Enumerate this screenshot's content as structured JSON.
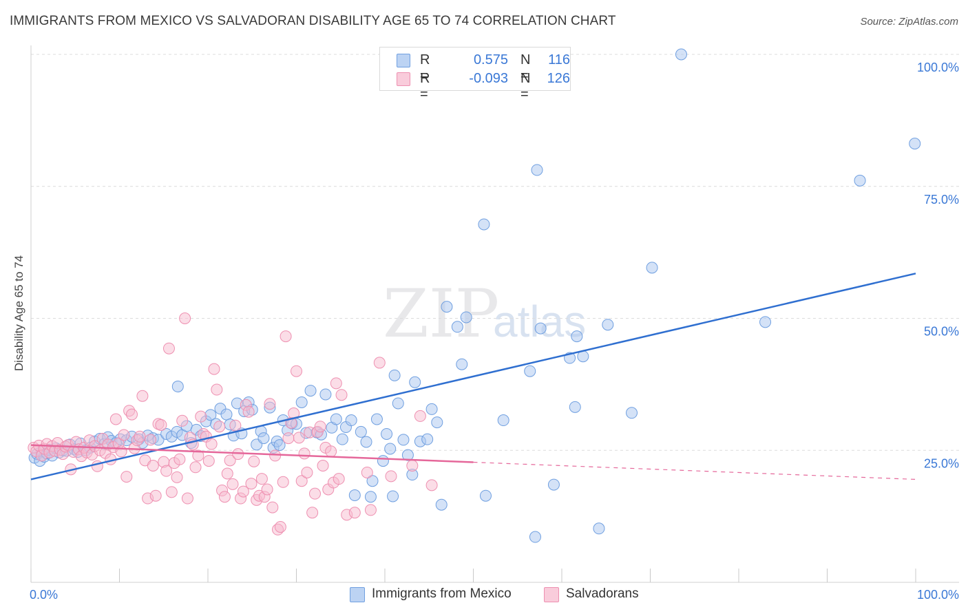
{
  "title": "IMMIGRANTS FROM MEXICO VS SALVADORAN DISABILITY AGE 65 TO 74 CORRELATION CHART",
  "source": "Source: ZipAtlas.com",
  "watermark": {
    "zip": "ZIP",
    "atlas": "atlas"
  },
  "legend": {
    "r_label": "R =",
    "n_label": "N =",
    "rows": [
      {
        "r": "0.575",
        "n": "116",
        "color": "#a9c6ef",
        "stroke": "#6f9fe0"
      },
      {
        "r": "-0.093",
        "n": "126",
        "color": "#f7bcd0",
        "stroke": "#ee8fb0"
      }
    ]
  },
  "chart_data": {
    "type": "scatter",
    "xlabel": "",
    "ylabel": "Disability Age 65 to 74",
    "xlim": [
      0,
      100
    ],
    "ylim": [
      0,
      100
    ],
    "x_tick_labels": [
      {
        "value": 0,
        "label": "0.0%"
      },
      {
        "value": 100,
        "label": "100.0%"
      }
    ],
    "y_tick_labels": [
      {
        "value": 25,
        "label": "25.0%"
      },
      {
        "value": 50,
        "label": "50.0%"
      },
      {
        "value": 75,
        "label": "75.0%"
      },
      {
        "value": 100,
        "label": "100.0%"
      }
    ],
    "grid": true,
    "legend_position": "bottom",
    "series": [
      {
        "name": "Immigrants from Mexico",
        "color": "#6f9fe0",
        "fill": "#a9c6ef",
        "trend": {
          "x": [
            0,
            100
          ],
          "y": [
            19.5,
            58.5
          ],
          "dashed_from": null
        },
        "points": [
          [
            0.4,
            23.6
          ],
          [
            0.7,
            24.3
          ],
          [
            1.0,
            23.0
          ],
          [
            1.2,
            24.8
          ],
          [
            1.5,
            23.8
          ],
          [
            1.8,
            24.4
          ],
          [
            2.0,
            25.1
          ],
          [
            2.4,
            24.0
          ],
          [
            2.8,
            25.4
          ],
          [
            3.2,
            24.6
          ],
          [
            3.6,
            25.0
          ],
          [
            4.0,
            24.9
          ],
          [
            4.4,
            26.1
          ],
          [
            4.9,
            25.2
          ],
          [
            5.3,
            24.7
          ],
          [
            5.6,
            26.3
          ],
          [
            6.2,
            25.0
          ],
          [
            6.7,
            25.5
          ],
          [
            7.2,
            26.7
          ],
          [
            7.8,
            27.2
          ],
          [
            8.3,
            26.2
          ],
          [
            8.7,
            27.5
          ],
          [
            9.1,
            26.8
          ],
          [
            9.6,
            26.4
          ],
          [
            10.1,
            27.1
          ],
          [
            10.8,
            26.9
          ],
          [
            11.4,
            27.6
          ],
          [
            12.2,
            27.1
          ],
          [
            12.6,
            26.4
          ],
          [
            13.2,
            27.8
          ],
          [
            13.8,
            27.3
          ],
          [
            14.4,
            27.0
          ],
          [
            15.3,
            28.1
          ],
          [
            15.9,
            27.6
          ],
          [
            16.5,
            28.5
          ],
          [
            17.1,
            27.9
          ],
          [
            17.6,
            29.6
          ],
          [
            18.1,
            26.4
          ],
          [
            18.7,
            28.9
          ],
          [
            19.2,
            27.7
          ],
          [
            19.8,
            30.5
          ],
          [
            20.3,
            31.7
          ],
          [
            20.9,
            30.0
          ],
          [
            21.4,
            32.9
          ],
          [
            22.1,
            31.8
          ],
          [
            22.5,
            29.9
          ],
          [
            22.9,
            27.8
          ],
          [
            23.3,
            33.9
          ],
          [
            23.8,
            28.2
          ],
          [
            24.1,
            32.4
          ],
          [
            24.6,
            34.1
          ],
          [
            25.0,
            32.7
          ],
          [
            25.5,
            26.1
          ],
          [
            26.0,
            28.6
          ],
          [
            26.3,
            27.3
          ],
          [
            27.0,
            33.1
          ],
          [
            27.4,
            25.5
          ],
          [
            27.8,
            26.7
          ],
          [
            28.1,
            26.0
          ],
          [
            28.5,
            30.7
          ],
          [
            29.0,
            28.8
          ],
          [
            29.5,
            30.1
          ],
          [
            30.0,
            30.0
          ],
          [
            30.6,
            34.1
          ],
          [
            31.1,
            28.3
          ],
          [
            31.6,
            36.3
          ],
          [
            32.3,
            28.4
          ],
          [
            32.8,
            28.0
          ],
          [
            33.3,
            35.6
          ],
          [
            34.0,
            29.3
          ],
          [
            34.5,
            30.9
          ],
          [
            35.2,
            27.1
          ],
          [
            35.6,
            29.4
          ],
          [
            36.2,
            30.7
          ],
          [
            36.6,
            16.5
          ],
          [
            37.3,
            28.5
          ],
          [
            37.9,
            26.6
          ],
          [
            38.4,
            16.2
          ],
          [
            38.6,
            19.2
          ],
          [
            39.1,
            30.9
          ],
          [
            39.8,
            23.0
          ],
          [
            40.2,
            28.1
          ],
          [
            40.6,
            25.3
          ],
          [
            41.1,
            39.2
          ],
          [
            41.5,
            33.9
          ],
          [
            42.1,
            27.0
          ],
          [
            42.6,
            24.1
          ],
          [
            43.1,
            20.4
          ],
          [
            43.4,
            37.9
          ],
          [
            44.0,
            26.7
          ],
          [
            44.8,
            27.1
          ],
          [
            45.3,
            32.8
          ],
          [
            45.9,
            30.3
          ],
          [
            46.4,
            14.7
          ],
          [
            47.0,
            52.2
          ],
          [
            48.2,
            48.4
          ],
          [
            48.7,
            41.3
          ],
          [
            49.2,
            50.2
          ],
          [
            51.2,
            67.8
          ],
          [
            51.4,
            16.4
          ],
          [
            53.4,
            30.7
          ],
          [
            56.4,
            40.0
          ],
          [
            57.0,
            8.6
          ],
          [
            57.2,
            78.1
          ],
          [
            57.6,
            48.1
          ],
          [
            59.1,
            18.5
          ],
          [
            60.9,
            42.5
          ],
          [
            61.5,
            33.2
          ],
          [
            61.7,
            46.6
          ],
          [
            62.4,
            42.8
          ],
          [
            64.2,
            10.2
          ],
          [
            65.2,
            48.8
          ],
          [
            67.9,
            32.1
          ],
          [
            70.2,
            59.6
          ],
          [
            73.5,
            100.0
          ],
          [
            83.0,
            49.3
          ],
          [
            93.7,
            76.1
          ],
          [
            99.9,
            83.1
          ],
          [
            16.6,
            37.1
          ],
          [
            40.9,
            16.3
          ]
        ]
      },
      {
        "name": "Salvadorans",
        "color": "#ee8fb0",
        "fill": "#f7bcd0",
        "trend": {
          "x": [
            0,
            100
          ],
          "y": [
            26.0,
            19.5
          ],
          "dashed_from": 50
        },
        "points": [
          [
            0.3,
            25.5
          ],
          [
            0.6,
            24.8
          ],
          [
            0.9,
            25.9
          ],
          [
            1.2,
            24.0
          ],
          [
            1.5,
            25.3
          ],
          [
            1.8,
            26.2
          ],
          [
            2.1,
            24.6
          ],
          [
            2.4,
            25.8
          ],
          [
            2.7,
            24.9
          ],
          [
            3.0,
            26.4
          ],
          [
            3.3,
            25.1
          ],
          [
            3.6,
            24.3
          ],
          [
            3.9,
            25.7
          ],
          [
            4.2,
            26.0
          ],
          [
            4.5,
            21.4
          ],
          [
            4.8,
            24.7
          ],
          [
            5.1,
            26.6
          ],
          [
            5.4,
            25.2
          ],
          [
            5.7,
            23.9
          ],
          [
            6.0,
            25.5
          ],
          [
            6.3,
            24.6
          ],
          [
            6.6,
            26.9
          ],
          [
            6.9,
            24.2
          ],
          [
            7.2,
            25.8
          ],
          [
            7.5,
            22.0
          ],
          [
            7.8,
            25.0
          ],
          [
            8.1,
            27.2
          ],
          [
            8.4,
            24.5
          ],
          [
            8.7,
            26.1
          ],
          [
            9.0,
            23.3
          ],
          [
            9.3,
            25.6
          ],
          [
            9.6,
            30.9
          ],
          [
            9.9,
            26.3
          ],
          [
            10.2,
            24.8
          ],
          [
            10.5,
            27.9
          ],
          [
            10.8,
            20.0
          ],
          [
            11.1,
            32.5
          ],
          [
            11.4,
            31.8
          ],
          [
            11.7,
            25.4
          ],
          [
            12.0,
            26.9
          ],
          [
            12.3,
            27.6
          ],
          [
            12.6,
            35.3
          ],
          [
            12.9,
            23.1
          ],
          [
            13.2,
            15.9
          ],
          [
            13.5,
            27.0
          ],
          [
            13.8,
            22.1
          ],
          [
            14.1,
            16.4
          ],
          [
            14.4,
            30.0
          ],
          [
            14.7,
            29.8
          ],
          [
            15.0,
            22.8
          ],
          [
            15.3,
            21.1
          ],
          [
            15.6,
            44.3
          ],
          [
            15.9,
            17.1
          ],
          [
            16.2,
            22.6
          ],
          [
            16.5,
            19.9
          ],
          [
            16.8,
            23.3
          ],
          [
            17.1,
            30.6
          ],
          [
            17.4,
            50.0
          ],
          [
            17.7,
            15.9
          ],
          [
            18.0,
            27.4
          ],
          [
            18.3,
            26.1
          ],
          [
            18.6,
            21.8
          ],
          [
            18.9,
            24.0
          ],
          [
            19.2,
            31.4
          ],
          [
            19.5,
            28.1
          ],
          [
            19.8,
            27.6
          ],
          [
            20.1,
            23.0
          ],
          [
            20.4,
            26.2
          ],
          [
            20.7,
            40.4
          ],
          [
            21.0,
            36.5
          ],
          [
            21.3,
            29.5
          ],
          [
            21.6,
            17.4
          ],
          [
            21.9,
            16.2
          ],
          [
            22.2,
            20.6
          ],
          [
            22.5,
            23.1
          ],
          [
            22.8,
            18.6
          ],
          [
            23.1,
            29.7
          ],
          [
            23.4,
            24.3
          ],
          [
            23.7,
            15.9
          ],
          [
            24.0,
            17.2
          ],
          [
            24.3,
            33.6
          ],
          [
            24.6,
            32.3
          ],
          [
            24.9,
            18.7
          ],
          [
            25.2,
            22.9
          ],
          [
            25.5,
            15.6
          ],
          [
            25.8,
            16.4
          ],
          [
            26.1,
            19.6
          ],
          [
            26.4,
            16.2
          ],
          [
            26.7,
            17.6
          ],
          [
            27.0,
            33.8
          ],
          [
            27.3,
            14.2
          ],
          [
            27.6,
            24.0
          ],
          [
            27.9,
            10.0
          ],
          [
            28.2,
            10.5
          ],
          [
            28.5,
            19.0
          ],
          [
            28.8,
            46.6
          ],
          [
            29.1,
            27.3
          ],
          [
            29.4,
            30.2
          ],
          [
            29.7,
            32.0
          ],
          [
            30.0,
            40.0
          ],
          [
            30.3,
            27.4
          ],
          [
            30.6,
            19.2
          ],
          [
            30.9,
            24.4
          ],
          [
            31.2,
            20.8
          ],
          [
            31.5,
            28.4
          ],
          [
            31.8,
            13.2
          ],
          [
            32.1,
            16.8
          ],
          [
            32.4,
            28.5
          ],
          [
            32.7,
            29.5
          ],
          [
            33.0,
            22.1
          ],
          [
            33.3,
            25.5
          ],
          [
            33.6,
            17.6
          ],
          [
            33.9,
            24.8
          ],
          [
            34.2,
            18.9
          ],
          [
            34.5,
            37.7
          ],
          [
            34.8,
            19.6
          ],
          [
            35.1,
            35.5
          ],
          [
            35.7,
            12.8
          ],
          [
            36.6,
            13.2
          ],
          [
            38.0,
            20.8
          ],
          [
            38.4,
            13.7
          ],
          [
            39.4,
            41.6
          ],
          [
            40.7,
            20.1
          ],
          [
            43.1,
            22.1
          ],
          [
            44.0,
            31.5
          ],
          [
            45.3,
            18.4
          ]
        ]
      }
    ]
  }
}
